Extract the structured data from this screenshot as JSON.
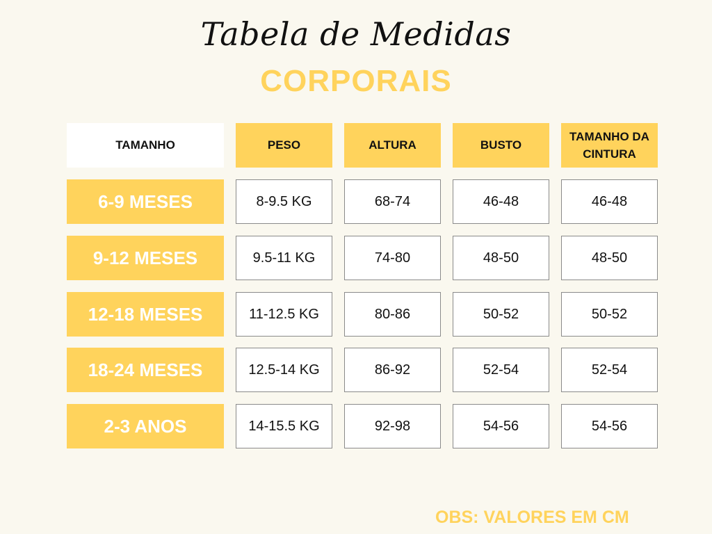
{
  "title": "Tabela de Medidas",
  "subtitle": "CORPORAIS",
  "headers": [
    "TAMANHO",
    "PESO",
    "ALTURA",
    "BUSTO",
    "TAMANHO DA CINTURA"
  ],
  "rows": [
    {
      "size": "6-9 MESES",
      "peso": "8-9.5 KG",
      "altura": "68-74",
      "busto": "46-48",
      "cintura": "46-48"
    },
    {
      "size": "9-12 MESES",
      "peso": "9.5-11 KG",
      "altura": "74-80",
      "busto": "48-50",
      "cintura": "48-50"
    },
    {
      "size": "12-18 MESES",
      "peso": "11-12.5 KG",
      "altura": "80-86",
      "busto": "50-52",
      "cintura": "50-52"
    },
    {
      "size": "18-24 MESES",
      "peso": "12.5-14 KG",
      "altura": "86-92",
      "busto": "52-54",
      "cintura": "52-54"
    },
    {
      "size": "2-3 ANOS",
      "peso": "14-15.5 KG",
      "altura": "92-98",
      "busto": "54-56",
      "cintura": "54-56"
    }
  ],
  "note": "OBS: VALORES EM CM",
  "colors": {
    "accent": "#ffd35c",
    "background": "#faf8ef",
    "border": "#8a8a8a"
  }
}
